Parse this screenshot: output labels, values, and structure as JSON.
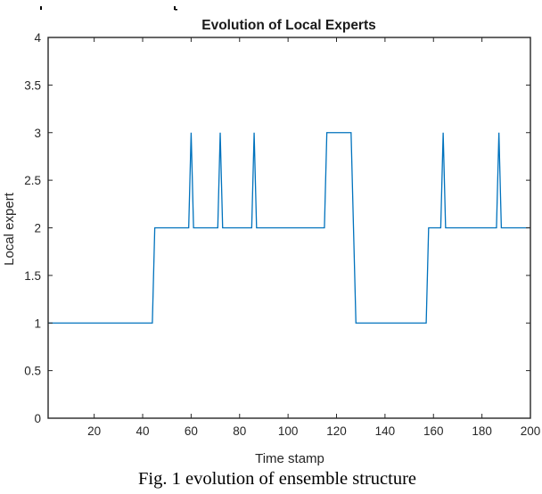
{
  "figure": {
    "caption": "Fig. 1 evolution of ensemble structure"
  },
  "colors": {
    "line": "#0072BD",
    "axis": "#262626",
    "tick_label": "#262626",
    "background": "#ffffff"
  },
  "chart_data": {
    "type": "line",
    "title": "Evolution of Local Experts",
    "xlabel": "Time stamp",
    "ylabel": "Local expert",
    "xlim": [
      1,
      200
    ],
    "ylim": [
      0,
      4
    ],
    "xticks": [
      20,
      40,
      60,
      80,
      100,
      120,
      140,
      160,
      180,
      200
    ],
    "yticks": [
      0,
      0.5,
      1,
      1.5,
      2,
      2.5,
      3,
      3.5,
      4
    ],
    "ytick_labels": [
      "0",
      "0.5",
      "1",
      "1.5",
      "2",
      "2.5",
      "3",
      "3.5",
      "4"
    ],
    "grid": false,
    "legend": null,
    "series": [
      {
        "name": "Local expert",
        "points": [
          [
            1,
            1
          ],
          [
            44,
            1
          ],
          [
            45,
            2
          ],
          [
            59,
            2
          ],
          [
            60,
            3
          ],
          [
            61,
            2
          ],
          [
            71,
            2
          ],
          [
            72,
            3
          ],
          [
            73,
            2
          ],
          [
            85,
            2
          ],
          [
            86,
            3
          ],
          [
            87,
            2
          ],
          [
            115,
            2
          ],
          [
            116,
            3
          ],
          [
            126,
            3
          ],
          [
            127,
            2
          ],
          [
            128,
            1
          ],
          [
            157,
            1
          ],
          [
            158,
            2
          ],
          [
            163,
            2
          ],
          [
            164,
            3
          ],
          [
            165,
            2
          ],
          [
            186,
            2
          ],
          [
            187,
            3
          ],
          [
            188,
            2
          ],
          [
            200,
            2
          ]
        ]
      }
    ]
  }
}
